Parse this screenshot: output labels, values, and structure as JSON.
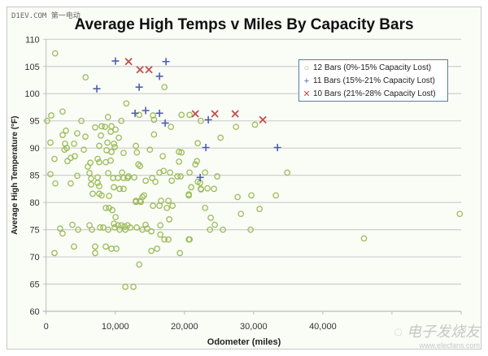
{
  "watermark_top": "D1EV.COM 第一电动",
  "watermark_logo": {
    "big": "电子发烧友",
    "small": "www.elecfans.com"
  },
  "chart_data": {
    "type": "scatter",
    "title": "Average High Temps v Miles By Capacity Bars",
    "xlabel": "Odometer (miles)",
    "ylabel": "Average High Temperature (°F)",
    "xlim": [
      0,
      60000
    ],
    "ylim": [
      60,
      110
    ],
    "xticks": [
      "0",
      "10,000",
      "20,000",
      "30,000",
      "40,000",
      "50,000",
      "60,000"
    ],
    "xtick_values": [
      0,
      10000,
      20000,
      30000,
      40000,
      50000,
      60000
    ],
    "yticks": [
      "60",
      "65",
      "70",
      "75",
      "80",
      "85",
      "90",
      "95",
      "100",
      "105",
      "110"
    ],
    "ytick_values": [
      60,
      65,
      70,
      75,
      80,
      85,
      90,
      95,
      100,
      105,
      110
    ],
    "grid": "horizontal",
    "legend_position": "top-right",
    "series": [
      {
        "name": "12 Bars (0%-15% Capacity Lost)",
        "marker": "circle",
        "color": "#9bbb59",
        "points": [
          [
            1300,
            107.4
          ],
          [
            5700,
            103
          ],
          [
            17100,
            101.2
          ],
          [
            11600,
            98.2
          ],
          [
            740,
            96
          ],
          [
            2380,
            96.7
          ],
          [
            150,
            95
          ],
          [
            5090,
            95
          ],
          [
            8940,
            95.7
          ],
          [
            10860,
            95
          ],
          [
            13450,
            96.1
          ],
          [
            15450,
            96
          ],
          [
            15600,
            95.2
          ],
          [
            18040,
            93.9
          ],
          [
            19570,
            96.1
          ],
          [
            20740,
            96.1
          ],
          [
            22360,
            95
          ],
          [
            27450,
            93.9
          ],
          [
            30190,
            94.3
          ],
          [
            2860,
            93.2
          ],
          [
            2390,
            92.4
          ],
          [
            4500,
            92.7
          ],
          [
            5680,
            92.1
          ],
          [
            7090,
            93.8
          ],
          [
            8030,
            94
          ],
          [
            8510,
            93.9
          ],
          [
            9450,
            94
          ],
          [
            10040,
            93.4
          ],
          [
            7920,
            92.3
          ],
          [
            9330,
            93
          ],
          [
            10510,
            91.9
          ],
          [
            15600,
            92.5
          ],
          [
            21920,
            90.9
          ],
          [
            25210,
            91.9
          ],
          [
            620,
            91
          ],
          [
            2740,
            90.8
          ],
          [
            3000,
            90
          ],
          [
            2650,
            89.7
          ],
          [
            4040,
            90.8
          ],
          [
            5450,
            89.7
          ],
          [
            7680,
            90.4
          ],
          [
            8860,
            91
          ],
          [
            8740,
            89.6
          ],
          [
            9800,
            90.8
          ],
          [
            9920,
            90.2
          ],
          [
            9450,
            89.3
          ],
          [
            11200,
            89.1
          ],
          [
            12980,
            90.4
          ],
          [
            13120,
            89.2
          ],
          [
            15000,
            89.7
          ],
          [
            19570,
            89.2
          ],
          [
            1210,
            88
          ],
          [
            3090,
            87.6
          ],
          [
            3560,
            88.2
          ],
          [
            4150,
            88.5
          ],
          [
            7450,
            88
          ],
          [
            7680,
            87.4
          ],
          [
            8630,
            87.4
          ],
          [
            9330,
            87.7
          ],
          [
            6030,
            86.6
          ],
          [
            6390,
            87.3
          ],
          [
            620,
            85.2
          ],
          [
            4500,
            84.9
          ],
          [
            1330,
            83.5
          ],
          [
            3560,
            83.5
          ],
          [
            6270,
            85.4
          ],
          [
            6500,
            84.4
          ],
          [
            7450,
            84.6
          ],
          [
            7450,
            83.6
          ],
          [
            6500,
            83.3
          ],
          [
            7680,
            83
          ],
          [
            6740,
            81.6
          ],
          [
            7680,
            81.6
          ],
          [
            8030,
            81.3
          ],
          [
            9100,
            81.2
          ],
          [
            8980,
            85.4
          ],
          [
            9680,
            84.5
          ],
          [
            10390,
            84.5
          ],
          [
            10980,
            85.5
          ],
          [
            11200,
            84.5
          ],
          [
            11790,
            84.5
          ],
          [
            9800,
            82.8
          ],
          [
            10630,
            82.5
          ],
          [
            11200,
            82.5
          ],
          [
            16860,
            88.5
          ],
          [
            19210,
            89.3
          ],
          [
            19210,
            87.5
          ],
          [
            21570,
            87
          ],
          [
            21800,
            87.6
          ],
          [
            13330,
            87
          ],
          [
            13570,
            86.7
          ],
          [
            16390,
            85.5
          ],
          [
            16980,
            85.8
          ],
          [
            17920,
            85.5
          ],
          [
            18980,
            84.8
          ],
          [
            19450,
            84.8
          ],
          [
            20740,
            85.5
          ],
          [
            22980,
            85.5
          ],
          [
            11910,
            84.8
          ],
          [
            12740,
            84.6
          ],
          [
            14390,
            84
          ],
          [
            15330,
            84.5
          ],
          [
            15800,
            83.8
          ],
          [
            18160,
            84
          ],
          [
            21920,
            83.8
          ],
          [
            20980,
            82.8
          ],
          [
            22360,
            82.5
          ],
          [
            23330,
            82.6
          ],
          [
            20630,
            81.5
          ],
          [
            14150,
            81.3
          ],
          [
            13920,
            81
          ],
          [
            16620,
            80.3
          ],
          [
            17680,
            80.3
          ],
          [
            12980,
            80.3
          ],
          [
            13570,
            80.3
          ],
          [
            24740,
            84.8
          ],
          [
            34860,
            85.5
          ],
          [
            22270,
            83.6
          ],
          [
            22390,
            82.4
          ],
          [
            24270,
            82.5
          ],
          [
            27680,
            81
          ],
          [
            29680,
            81.3
          ],
          [
            33210,
            81.3
          ],
          [
            22980,
            79
          ],
          [
            28160,
            77.9
          ],
          [
            30860,
            78.8
          ],
          [
            23800,
            77.2
          ],
          [
            24390,
            75.9
          ],
          [
            23680,
            75
          ],
          [
            25560,
            75
          ],
          [
            29560,
            75
          ],
          [
            20630,
            73.2
          ],
          [
            8630,
            79
          ],
          [
            9100,
            79
          ],
          [
            9570,
            78.6
          ],
          [
            10040,
            77.3
          ],
          [
            9800,
            76.1
          ],
          [
            10390,
            75.8
          ],
          [
            10860,
            75.8
          ],
          [
            11330,
            75.6
          ],
          [
            11790,
            75.8
          ],
          [
            12160,
            75.4
          ],
          [
            11450,
            75
          ],
          [
            10630,
            75
          ],
          [
            9920,
            75.4
          ],
          [
            8980,
            75
          ],
          [
            8270,
            75.4
          ],
          [
            7800,
            75.4
          ],
          [
            6270,
            75.8
          ],
          [
            6620,
            75
          ],
          [
            4620,
            75
          ],
          [
            3800,
            75.9
          ],
          [
            2030,
            75.2
          ],
          [
            2380,
            74.3
          ],
          [
            13100,
            75.4
          ],
          [
            13920,
            75
          ],
          [
            14380,
            75.9
          ],
          [
            14620,
            75.2
          ],
          [
            15210,
            74.7
          ],
          [
            16510,
            75.8
          ],
          [
            16510,
            74.1
          ],
          [
            17100,
            73.2
          ],
          [
            17680,
            73.2
          ],
          [
            20740,
            73.2
          ],
          [
            17800,
            76.9
          ],
          [
            17450,
            79
          ],
          [
            18270,
            79.4
          ],
          [
            16390,
            79.4
          ],
          [
            15450,
            79.4
          ],
          [
            12980,
            80.1
          ],
          [
            13690,
            80.1
          ],
          [
            20630,
            81.3
          ],
          [
            1210,
            70.7
          ],
          [
            4030,
            71.9
          ],
          [
            7090,
            71.9
          ],
          [
            7090,
            70.7
          ],
          [
            8630,
            71.9
          ],
          [
            9450,
            71.5
          ],
          [
            10160,
            71.5
          ],
          [
            15210,
            71.1
          ],
          [
            16040,
            71.5
          ],
          [
            19330,
            70.7
          ],
          [
            13450,
            68.6
          ],
          [
            11450,
            64.5
          ],
          [
            12620,
            64.5
          ],
          [
            45950,
            73.4
          ],
          [
            59800,
            77.9
          ]
        ]
      },
      {
        "name": "11 Bars (15%-21% Capacity Lost)",
        "marker": "plus",
        "color": "#4f5fa8",
        "points": [
          [
            10020,
            106
          ],
          [
            17330,
            105.9
          ],
          [
            16390,
            103.2
          ],
          [
            7330,
            100.9
          ],
          [
            13450,
            101.2
          ],
          [
            12860,
            96.4
          ],
          [
            14390,
            96.9
          ],
          [
            16390,
            96.4
          ],
          [
            17210,
            94.6
          ],
          [
            23450,
            95.2
          ],
          [
            23090,
            90.1
          ],
          [
            33450,
            90.1
          ],
          [
            22270,
            84.6
          ]
        ]
      },
      {
        "name": "10 Bars (21%-28% Capacity Lost)",
        "marker": "x",
        "color": "#c0504d",
        "points": [
          [
            11920,
            105.9
          ],
          [
            13570,
            104.4
          ],
          [
            14860,
            104.4
          ],
          [
            21570,
            96.3
          ],
          [
            24390,
            96.3
          ],
          [
            27330,
            96.3
          ],
          [
            31330,
            95.2
          ]
        ]
      }
    ]
  }
}
